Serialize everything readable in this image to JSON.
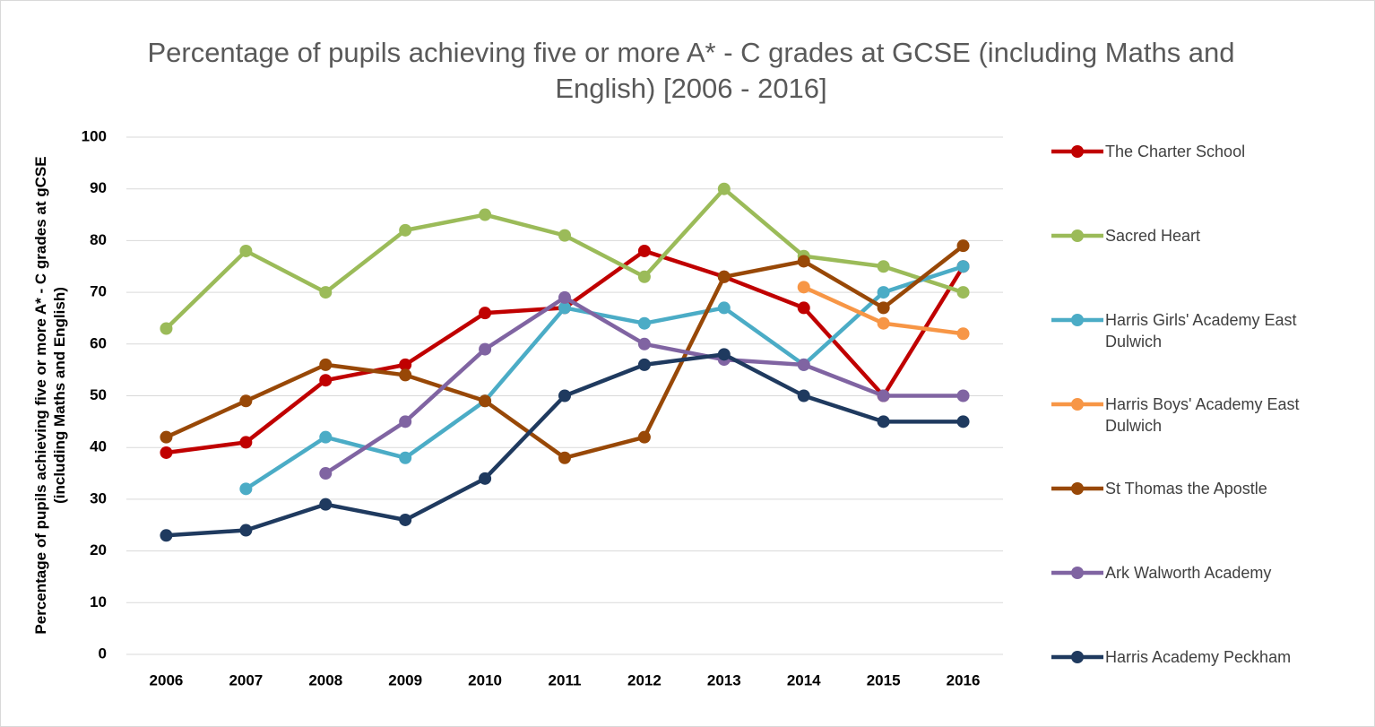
{
  "chart_data": {
    "type": "line",
    "title": "Percentage of pupils achieving five or more A* - C grades at GCSE (including Maths and English) [2006 - 2016]",
    "y_label": "Percentage of pupils achieving five or more A* - C grades at gCSE (including Maths and English)",
    "categories": [
      "2006",
      "2007",
      "2008",
      "2009",
      "2010",
      "2011",
      "2012",
      "2013",
      "2014",
      "2015",
      "2016"
    ],
    "ylim": [
      0,
      100
    ],
    "yticks": [
      0,
      10,
      20,
      30,
      40,
      50,
      60,
      70,
      80,
      90,
      100
    ],
    "grid": true,
    "legend": "right",
    "series": [
      {
        "name": "The Charter School",
        "color": "#c00000",
        "values": [
          39,
          41,
          53,
          56,
          66,
          67,
          78,
          73,
          67,
          50,
          75
        ]
      },
      {
        "name": "Sacred Heart",
        "color": "#9bbb59",
        "values": [
          63,
          78,
          70,
          82,
          85,
          81,
          73,
          90,
          77,
          75,
          70
        ]
      },
      {
        "name": "Harris Girls' Academy East Dulwich",
        "color": "#4bacc6",
        "values": [
          null,
          32,
          42,
          38,
          49,
          67,
          64,
          67,
          56,
          70,
          75
        ]
      },
      {
        "name": "Harris Boys' Academy East Dulwich",
        "color": "#f79646",
        "values": [
          null,
          null,
          null,
          null,
          null,
          null,
          null,
          null,
          71,
          64,
          62
        ]
      },
      {
        "name": "St Thomas the Apostle",
        "color": "#984807",
        "values": [
          42,
          49,
          56,
          54,
          49,
          38,
          42,
          73,
          76,
          67,
          79
        ]
      },
      {
        "name": "Ark Walworth Academy",
        "color": "#8064a2",
        "values": [
          null,
          null,
          35,
          45,
          59,
          69,
          60,
          57,
          56,
          50,
          50
        ]
      },
      {
        "name": "Harris Academy Peckham",
        "color": "#1f3a5f",
        "values": [
          23,
          24,
          29,
          26,
          34,
          50,
          56,
          58,
          50,
          45,
          45
        ]
      }
    ]
  }
}
